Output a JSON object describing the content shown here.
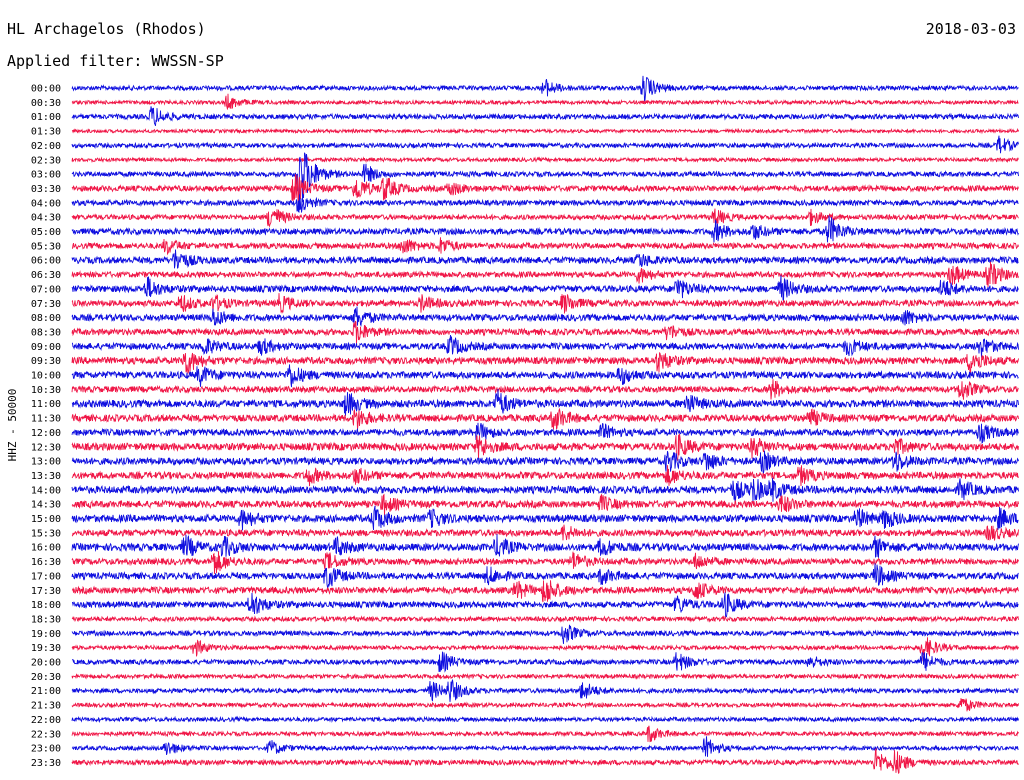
{
  "header": {
    "station_title": "HL Archagelos (Rhodos)",
    "filter_label": "Applied filter: WWSSN-SP",
    "date": "2018-03-03"
  },
  "colors": {
    "trace_a": "#1010e0",
    "trace_b": "#f01848",
    "text": "#000000",
    "background": "#ffffff"
  },
  "chart_data": {
    "type": "line",
    "title": "HL Archagelos (Rhodos)",
    "subtitle": "Applied filter: WWSSN-SP",
    "ylabel": "HHZ - 50000",
    "xlabel": "",
    "row_labels": [
      "00:00",
      "00:30",
      "01:00",
      "01:30",
      "02:00",
      "02:30",
      "03:00",
      "03:30",
      "04:00",
      "04:30",
      "05:00",
      "05:30",
      "06:00",
      "06:30",
      "07:00",
      "07:30",
      "08:00",
      "08:30",
      "09:00",
      "09:30",
      "10:00",
      "10:30",
      "11:00",
      "11:30",
      "12:00",
      "12:30",
      "13:00",
      "13:30",
      "14:00",
      "14:30",
      "15:00",
      "15:30",
      "16:00",
      "16:30",
      "17:00",
      "17:30",
      "18:00",
      "18:30",
      "19:00",
      "19:30",
      "20:00",
      "20:30",
      "21:00",
      "21:30",
      "22:00",
      "22:30",
      "23:00",
      "23:30"
    ],
    "color_cycle": [
      "#1010e0",
      "#f01848"
    ],
    "background_noise": [
      2.2,
      1.8,
      2.4,
      1.6,
      2.2,
      1.8,
      2.4,
      2.8,
      2.6,
      2.4,
      3.0,
      2.8,
      3.2,
      2.8,
      3.2,
      3.0,
      3.2,
      3.0,
      3.2,
      3.4,
      3.4,
      3.0,
      3.6,
      3.4,
      3.2,
      3.6,
      3.4,
      3.4,
      3.6,
      3.4,
      3.6,
      3.2,
      3.6,
      3.0,
      3.2,
      3.2,
      3.0,
      2.2,
      2.4,
      2.0,
      2.4,
      2.0,
      2.2,
      2.0,
      2.0,
      2.0,
      2.0,
      2.4
    ],
    "events": [
      {
        "row": 0,
        "x": 0.5,
        "amp": 8
      },
      {
        "row": 0,
        "x": 0.605,
        "amp": 12
      },
      {
        "row": 1,
        "x": 0.165,
        "amp": 7
      },
      {
        "row": 2,
        "x": 0.085,
        "amp": 10
      },
      {
        "row": 4,
        "x": 0.98,
        "amp": 8
      },
      {
        "row": 6,
        "x": 0.24,
        "amp": 40
      },
      {
        "row": 6,
        "x": 0.31,
        "amp": 9
      },
      {
        "row": 7,
        "x": 0.235,
        "amp": 14
      },
      {
        "row": 7,
        "x": 0.3,
        "amp": 12
      },
      {
        "row": 7,
        "x": 0.33,
        "amp": 11
      },
      {
        "row": 7,
        "x": 0.4,
        "amp": 6
      },
      {
        "row": 8,
        "x": 0.24,
        "amp": 9
      },
      {
        "row": 9,
        "x": 0.21,
        "amp": 12
      },
      {
        "row": 9,
        "x": 0.68,
        "amp": 7
      },
      {
        "row": 9,
        "x": 0.78,
        "amp": 7
      },
      {
        "row": 10,
        "x": 0.68,
        "amp": 9
      },
      {
        "row": 10,
        "x": 0.72,
        "amp": 7
      },
      {
        "row": 10,
        "x": 0.8,
        "amp": 14
      },
      {
        "row": 11,
        "x": 0.1,
        "amp": 7
      },
      {
        "row": 11,
        "x": 0.35,
        "amp": 8
      },
      {
        "row": 11,
        "x": 0.39,
        "amp": 7
      },
      {
        "row": 12,
        "x": 0.11,
        "amp": 10
      },
      {
        "row": 12,
        "x": 0.6,
        "amp": 6
      },
      {
        "row": 13,
        "x": 0.6,
        "amp": 7
      },
      {
        "row": 13,
        "x": 0.93,
        "amp": 10
      },
      {
        "row": 13,
        "x": 0.97,
        "amp": 12
      },
      {
        "row": 14,
        "x": 0.08,
        "amp": 10
      },
      {
        "row": 14,
        "x": 0.64,
        "amp": 10
      },
      {
        "row": 14,
        "x": 0.75,
        "amp": 11
      },
      {
        "row": 14,
        "x": 0.92,
        "amp": 9
      },
      {
        "row": 15,
        "x": 0.115,
        "amp": 8
      },
      {
        "row": 15,
        "x": 0.15,
        "amp": 7
      },
      {
        "row": 15,
        "x": 0.22,
        "amp": 8
      },
      {
        "row": 15,
        "x": 0.37,
        "amp": 7
      },
      {
        "row": 15,
        "x": 0.52,
        "amp": 9
      },
      {
        "row": 16,
        "x": 0.15,
        "amp": 8
      },
      {
        "row": 16,
        "x": 0.3,
        "amp": 10
      },
      {
        "row": 16,
        "x": 0.88,
        "amp": 7
      },
      {
        "row": 17,
        "x": 0.3,
        "amp": 10
      },
      {
        "row": 17,
        "x": 0.63,
        "amp": 7
      },
      {
        "row": 18,
        "x": 0.14,
        "amp": 8
      },
      {
        "row": 18,
        "x": 0.2,
        "amp": 7
      },
      {
        "row": 18,
        "x": 0.4,
        "amp": 9
      },
      {
        "row": 18,
        "x": 0.82,
        "amp": 8
      },
      {
        "row": 18,
        "x": 0.96,
        "amp": 9
      },
      {
        "row": 19,
        "x": 0.12,
        "amp": 13
      },
      {
        "row": 19,
        "x": 0.62,
        "amp": 10
      },
      {
        "row": 19,
        "x": 0.95,
        "amp": 12
      },
      {
        "row": 20,
        "x": 0.135,
        "amp": 9
      },
      {
        "row": 20,
        "x": 0.23,
        "amp": 11
      },
      {
        "row": 20,
        "x": 0.58,
        "amp": 8
      },
      {
        "row": 21,
        "x": 0.74,
        "amp": 9
      },
      {
        "row": 21,
        "x": 0.94,
        "amp": 10
      },
      {
        "row": 22,
        "x": 0.29,
        "amp": 11
      },
      {
        "row": 22,
        "x": 0.45,
        "amp": 12
      },
      {
        "row": 22,
        "x": 0.65,
        "amp": 9
      },
      {
        "row": 23,
        "x": 0.3,
        "amp": 10
      },
      {
        "row": 23,
        "x": 0.51,
        "amp": 11
      },
      {
        "row": 23,
        "x": 0.78,
        "amp": 8
      },
      {
        "row": 24,
        "x": 0.43,
        "amp": 8
      },
      {
        "row": 24,
        "x": 0.56,
        "amp": 7
      },
      {
        "row": 24,
        "x": 0.96,
        "amp": 9
      },
      {
        "row": 25,
        "x": 0.43,
        "amp": 10
      },
      {
        "row": 25,
        "x": 0.64,
        "amp": 11
      },
      {
        "row": 25,
        "x": 0.72,
        "amp": 9
      },
      {
        "row": 25,
        "x": 0.87,
        "amp": 8
      },
      {
        "row": 26,
        "x": 0.63,
        "amp": 10
      },
      {
        "row": 26,
        "x": 0.67,
        "amp": 9
      },
      {
        "row": 26,
        "x": 0.73,
        "amp": 9
      },
      {
        "row": 26,
        "x": 0.87,
        "amp": 10
      },
      {
        "row": 27,
        "x": 0.25,
        "amp": 8
      },
      {
        "row": 27,
        "x": 0.3,
        "amp": 7
      },
      {
        "row": 27,
        "x": 0.63,
        "amp": 8
      },
      {
        "row": 27,
        "x": 0.77,
        "amp": 8
      },
      {
        "row": 28,
        "x": 0.7,
        "amp": 9
      },
      {
        "row": 28,
        "x": 0.72,
        "amp": 10
      },
      {
        "row": 28,
        "x": 0.74,
        "amp": 8
      },
      {
        "row": 28,
        "x": 0.94,
        "amp": 9
      },
      {
        "row": 29,
        "x": 0.33,
        "amp": 8
      },
      {
        "row": 29,
        "x": 0.56,
        "amp": 7
      },
      {
        "row": 29,
        "x": 0.75,
        "amp": 8
      },
      {
        "row": 30,
        "x": 0.18,
        "amp": 9
      },
      {
        "row": 30,
        "x": 0.32,
        "amp": 11
      },
      {
        "row": 30,
        "x": 0.38,
        "amp": 8
      },
      {
        "row": 30,
        "x": 0.83,
        "amp": 9
      },
      {
        "row": 30,
        "x": 0.86,
        "amp": 8
      },
      {
        "row": 30,
        "x": 0.98,
        "amp": 9
      },
      {
        "row": 31,
        "x": 0.52,
        "amp": 7
      },
      {
        "row": 31,
        "x": 0.97,
        "amp": 7
      },
      {
        "row": 32,
        "x": 0.12,
        "amp": 10
      },
      {
        "row": 32,
        "x": 0.16,
        "amp": 9
      },
      {
        "row": 32,
        "x": 0.28,
        "amp": 8
      },
      {
        "row": 32,
        "x": 0.45,
        "amp": 10
      },
      {
        "row": 32,
        "x": 0.56,
        "amp": 8
      },
      {
        "row": 32,
        "x": 0.85,
        "amp": 9
      },
      {
        "row": 33,
        "x": 0.15,
        "amp": 12
      },
      {
        "row": 33,
        "x": 0.27,
        "amp": 8
      },
      {
        "row": 33,
        "x": 0.53,
        "amp": 8
      },
      {
        "row": 33,
        "x": 0.66,
        "amp": 7
      },
      {
        "row": 34,
        "x": 0.27,
        "amp": 11
      },
      {
        "row": 34,
        "x": 0.44,
        "amp": 8
      },
      {
        "row": 34,
        "x": 0.56,
        "amp": 7
      },
      {
        "row": 34,
        "x": 0.85,
        "amp": 11
      },
      {
        "row": 35,
        "x": 0.47,
        "amp": 8
      },
      {
        "row": 35,
        "x": 0.5,
        "amp": 13
      },
      {
        "row": 35,
        "x": 0.66,
        "amp": 9
      },
      {
        "row": 36,
        "x": 0.19,
        "amp": 12
      },
      {
        "row": 36,
        "x": 0.64,
        "amp": 8
      },
      {
        "row": 36,
        "x": 0.69,
        "amp": 11
      },
      {
        "row": 38,
        "x": 0.52,
        "amp": 10
      },
      {
        "row": 39,
        "x": 0.13,
        "amp": 8
      },
      {
        "row": 39,
        "x": 0.9,
        "amp": 12
      },
      {
        "row": 40,
        "x": 0.39,
        "amp": 10
      },
      {
        "row": 40,
        "x": 0.64,
        "amp": 9
      },
      {
        "row": 40,
        "x": 0.78,
        "amp": 6
      },
      {
        "row": 40,
        "x": 0.9,
        "amp": 9
      },
      {
        "row": 42,
        "x": 0.38,
        "amp": 9
      },
      {
        "row": 42,
        "x": 0.4,
        "amp": 10
      },
      {
        "row": 42,
        "x": 0.54,
        "amp": 9
      },
      {
        "row": 43,
        "x": 0.94,
        "amp": 8
      },
      {
        "row": 45,
        "x": 0.61,
        "amp": 8
      },
      {
        "row": 46,
        "x": 0.1,
        "amp": 7
      },
      {
        "row": 46,
        "x": 0.21,
        "amp": 7
      },
      {
        "row": 46,
        "x": 0.67,
        "amp": 10
      },
      {
        "row": 47,
        "x": 0.85,
        "amp": 12
      },
      {
        "row": 47,
        "x": 0.87,
        "amp": 10
      }
    ]
  }
}
